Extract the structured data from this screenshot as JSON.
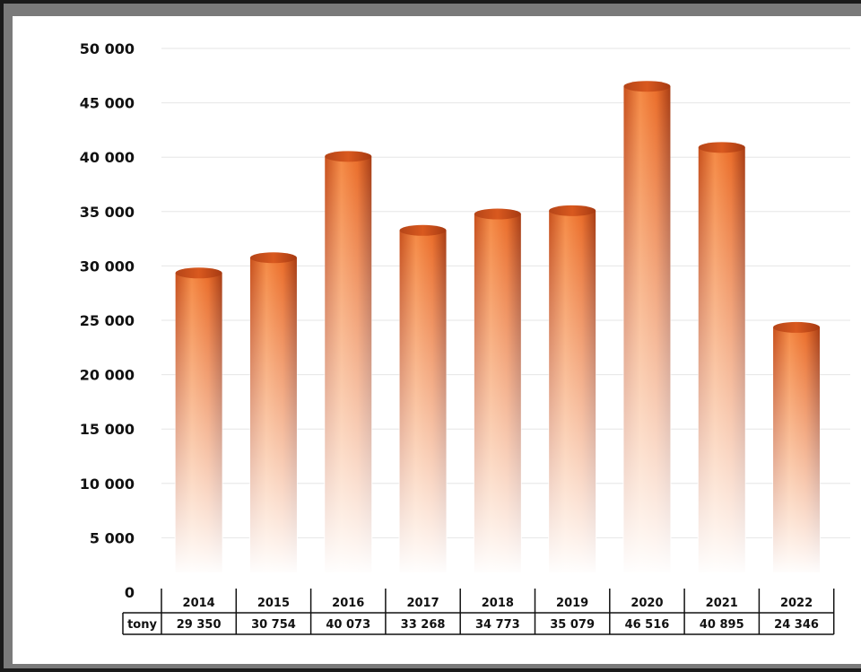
{
  "colors": {
    "bar_top": "#e86f2c",
    "bar_mid": "#f0762f",
    "bar_dark": "#b8461a",
    "grid": "#e6e6e6"
  },
  "chart_data": {
    "type": "bar",
    "categories": [
      "2014",
      "2015",
      "2016",
      "2017",
      "2018",
      "2019",
      "2020",
      "2021",
      "2022"
    ],
    "series": [
      {
        "name": "tony",
        "values": [
          29350,
          30754,
          40073,
          33268,
          34773,
          35079,
          46516,
          40895,
          24346
        ]
      }
    ],
    "value_labels": [
      "29 350",
      "30 754",
      "40 073",
      "33 268",
      "34 773",
      "35 079",
      "46 516",
      "40 895",
      "24 346"
    ],
    "ylim": [
      0,
      50000
    ],
    "yticks": [
      0,
      5000,
      10000,
      15000,
      20000,
      25000,
      30000,
      35000,
      40000,
      45000,
      50000
    ],
    "ytick_labels": [
      "0",
      "5 000",
      "10 000",
      "15 000",
      "20 000",
      "25 000",
      "30 000",
      "35 000",
      "40 000",
      "45 000",
      "50 000"
    ],
    "row_label": "tony",
    "grid": true,
    "style": "3d-cylinder"
  }
}
